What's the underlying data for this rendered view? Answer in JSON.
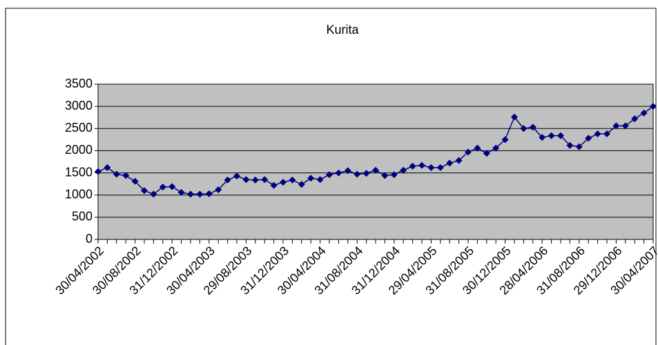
{
  "chart_data": {
    "type": "line",
    "title": "Kurita",
    "categories": [
      "30/04/2002",
      null,
      null,
      null,
      "30/08/2002",
      null,
      null,
      null,
      "31/12/2002",
      null,
      null,
      null,
      "30/04/2003",
      null,
      null,
      null,
      "29/08/2003",
      null,
      null,
      null,
      "31/12/2003",
      null,
      null,
      null,
      "30/04/2004",
      null,
      null,
      null,
      "31/08/2004",
      null,
      null,
      null,
      "31/12/2004",
      null,
      null,
      null,
      "29/04/2005",
      null,
      null,
      null,
      "31/08/2005",
      null,
      null,
      null,
      "30/12/2005",
      null,
      null,
      null,
      "28/04/2006",
      null,
      null,
      null,
      "31/08/2006",
      null,
      null,
      null,
      "29/12/2006",
      null,
      null,
      null,
      "30/04/2007"
    ],
    "series": [
      {
        "color": "#000080",
        "values": [
          1530,
          1620,
          1470,
          1440,
          1310,
          1100,
          1020,
          1180,
          1190,
          1060,
          1020,
          1020,
          1030,
          1120,
          1340,
          1430,
          1350,
          1340,
          1350,
          1220,
          1290,
          1340,
          1240,
          1380,
          1350,
          1460,
          1500,
          1550,
          1470,
          1490,
          1560,
          1440,
          1460,
          1560,
          1650,
          1670,
          1620,
          1620,
          1720,
          1780,
          1970,
          2060,
          1940,
          2060,
          2250,
          2760,
          2500,
          2530,
          2300,
          2340,
          2340,
          2120,
          2090,
          2280,
          2380,
          2380,
          2560,
          2560,
          2720,
          2850,
          3000
        ]
      }
    ],
    "ylim": [
      0,
      3500
    ],
    "yticks": [
      0,
      500,
      1000,
      1500,
      2000,
      2500,
      3000,
      3500
    ],
    "grid": true,
    "plot_background": "#c0c0c0"
  }
}
